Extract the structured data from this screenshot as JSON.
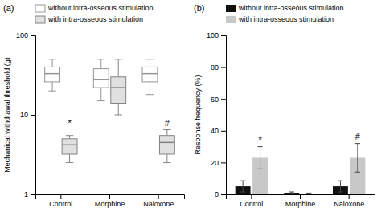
{
  "chart_data": [
    {
      "type": "box",
      "title": "(a)",
      "y_label": "Mechanical withdrawal threshold (g)",
      "categories": [
        "Control",
        "Morphine",
        "Naloxone"
      ],
      "log": "y",
      "ylim": [
        1,
        100
      ],
      "yticks": [
        1,
        10,
        100
      ],
      "grid": false,
      "legend": "top",
      "series": [
        {
          "name": "without intra-osseous stimulation",
          "color": "white",
          "boxes": [
            {
              "q1": 26,
              "median": 33,
              "q3": 40,
              "whislo": 20,
              "whishi": 50
            },
            {
              "q1": 22,
              "median": 28,
              "q3": 38,
              "whislo": 15,
              "whishi": 50
            },
            {
              "q1": 26,
              "median": 33,
              "q3": 40,
              "whislo": 18,
              "whishi": 50
            }
          ]
        },
        {
          "name": "with intra-osseous stimulation",
          "color": "#e0e0e0",
          "boxes": [
            {
              "q1": 3.2,
              "median": 4.2,
              "q3": 5.0,
              "whislo": 2.5,
              "whishi": 5.5
            },
            {
              "q1": 14,
              "median": 22,
              "q3": 30,
              "whislo": 10,
              "whishi": 50
            },
            {
              "q1": 3.2,
              "median": 4.5,
              "q3": 5.5,
              "whislo": 2.5,
              "whishi": 6.5
            }
          ]
        }
      ],
      "annotations": [
        {
          "text": "*",
          "category": "Control",
          "series": "with intra-osseous stimulation",
          "y": 7.0
        },
        {
          "text": "#",
          "category": "Naloxone",
          "series": "with intra-osseous stimulation",
          "y": 7.0
        }
      ]
    },
    {
      "type": "bar",
      "title": "(b)",
      "y_label": "Response frequency (%)",
      "categories": [
        "Control",
        "Morphine",
        "Naloxone"
      ],
      "ylim": [
        0,
        100
      ],
      "yticks": [
        0,
        20,
        40,
        60,
        80,
        100
      ],
      "grid": false,
      "legend": "top",
      "series": [
        {
          "name": "without intra-osseous stimulation",
          "color": "#111111",
          "values": [
            5.0,
            1.0,
            5.0
          ],
          "errors": [
            3.5,
            0.5,
            3.5
          ]
        },
        {
          "name": "with intra-osseous stimulation",
          "color": "#c8c8c8",
          "values": [
            23.0,
            0.5,
            23.0
          ],
          "errors": [
            7.0,
            0.3,
            9.0
          ]
        }
      ],
      "annotations": [
        {
          "text": "*",
          "category": "Control",
          "series": "with intra-osseous stimulation",
          "y": 32
        },
        {
          "text": "#",
          "category": "Naloxone",
          "series": "with intra-osseous stimulation",
          "y": 34
        }
      ]
    }
  ]
}
